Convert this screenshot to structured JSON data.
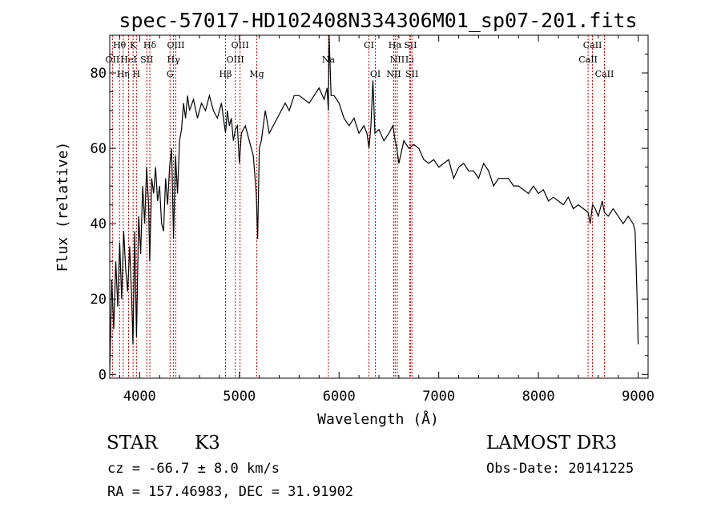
{
  "chart_data": {
    "type": "line",
    "title": "spec-57017-HD102408N334306M01_sp07-201.fits",
    "xlabel": "Wavelength (Å)",
    "ylabel": "Flux (relative)",
    "xlim": [
      3700,
      9100
    ],
    "ylim": [
      -1,
      90
    ],
    "xticks": [
      4000,
      5000,
      6000,
      7000,
      8000,
      9000
    ],
    "yticks": [
      0,
      20,
      40,
      60,
      80
    ],
    "grid": false,
    "series": [
      {
        "color": "#000000",
        "x": [
          3700,
          3720,
          3740,
          3760,
          3780,
          3800,
          3820,
          3840,
          3860,
          3880,
          3900,
          3920,
          3933,
          3950,
          3968,
          3990,
          4010,
          4030,
          4050,
          4070,
          4090,
          4101,
          4120,
          4140,
          4160,
          4180,
          4200,
          4220,
          4240,
          4260,
          4280,
          4300,
          4320,
          4340,
          4360,
          4380,
          4400,
          4420,
          4440,
          4460,
          4480,
          4500,
          4540,
          4580,
          4620,
          4660,
          4700,
          4740,
          4780,
          4820,
          4861,
          4880,
          4900,
          4920,
          4940,
          4960,
          4980,
          5000,
          5020,
          5060,
          5100,
          5140,
          5170,
          5183,
          5200,
          5220,
          5260,
          5300,
          5340,
          5380,
          5420,
          5460,
          5500,
          5550,
          5600,
          5650,
          5700,
          5750,
          5800,
          5850,
          5880,
          5893,
          5900,
          5920,
          5950,
          6000,
          6050,
          6100,
          6150,
          6200,
          6250,
          6280,
          6300,
          6320,
          6340,
          6360,
          6400,
          6450,
          6500,
          6540,
          6563,
          6580,
          6600,
          6650,
          6700,
          6750,
          6800,
          6850,
          6900,
          6950,
          7000,
          7050,
          7100,
          7150,
          7200,
          7250,
          7300,
          7350,
          7400,
          7450,
          7500,
          7550,
          7600,
          7650,
          7700,
          7750,
          7800,
          7850,
          7900,
          7950,
          8000,
          8050,
          8100,
          8150,
          8200,
          8250,
          8300,
          8350,
          8400,
          8450,
          8498,
          8520,
          8542,
          8570,
          8600,
          8640,
          8662,
          8700,
          8750,
          8800,
          8850,
          8900,
          8950,
          8970,
          8990,
          9000
        ],
        "y": [
          1,
          25,
          12,
          30,
          18,
          35,
          20,
          38,
          28,
          22,
          34,
          20,
          8,
          38,
          10,
          42,
          32,
          50,
          40,
          55,
          45,
          30,
          52,
          48,
          55,
          46,
          50,
          40,
          38,
          52,
          45,
          55,
          60,
          36,
          58,
          48,
          62,
          65,
          72,
          68,
          74,
          70,
          73,
          68,
          72,
          70,
          74,
          70,
          68,
          72,
          64,
          70,
          66,
          68,
          62,
          65,
          66,
          56,
          64,
          66,
          62,
          58,
          48,
          36,
          60,
          62,
          70,
          64,
          66,
          68,
          70,
          72,
          70,
          74,
          74,
          73,
          72,
          74,
          76,
          73,
          76,
          70,
          90,
          74,
          74,
          72,
          68,
          66,
          68,
          64,
          66,
          64,
          60,
          66,
          78,
          64,
          65,
          62,
          64,
          66,
          62,
          60,
          56,
          62,
          60,
          61,
          60,
          57,
          56,
          57,
          55,
          56,
          57,
          52,
          55,
          56,
          54,
          54,
          52,
          56,
          54,
          50,
          52,
          52,
          52,
          50,
          50,
          49,
          48,
          50,
          48,
          49,
          46,
          47,
          46,
          45,
          47,
          44,
          45,
          44,
          43,
          40,
          45,
          44,
          42,
          46,
          43,
          42,
          44,
          42,
          40,
          42,
          40,
          38,
          20,
          8
        ]
      }
    ],
    "line_markers": [
      {
        "label": "Hθ",
        "x": 3798,
        "row": 0
      },
      {
        "label": "K",
        "x": 3934,
        "row": 0
      },
      {
        "label": "Hδ",
        "x": 4102,
        "row": 0
      },
      {
        "label": "OIII",
        "x": 4363,
        "row": 0
      },
      {
        "label": "OIII",
        "x": 5007,
        "row": 0
      },
      {
        "label": "CI",
        "x": 6300,
        "row": 0
      },
      {
        "label": "Hα",
        "x": 6563,
        "row": 0
      },
      {
        "label": "SII",
        "x": 6716,
        "row": 0
      },
      {
        "label": "CaII",
        "x": 8542,
        "row": 0
      },
      {
        "label": "OII",
        "x": 3727,
        "row": 1
      },
      {
        "label": "HeI",
        "x": 3889,
        "row": 1
      },
      {
        "label": "SII",
        "x": 4072,
        "row": 1
      },
      {
        "label": "Hγ",
        "x": 4340,
        "row": 1
      },
      {
        "label": "OIII",
        "x": 4959,
        "row": 1
      },
      {
        "label": "Na",
        "x": 5893,
        "row": 1
      },
      {
        "label": "NII",
        "x": 6584,
        "row": 1
      },
      {
        "label": "Li",
        "x": 6708,
        "row": 1
      },
      {
        "label": "CaII",
        "x": 8498,
        "row": 1
      },
      {
        "label": "Hη",
        "x": 3835,
        "row": 2
      },
      {
        "label": "H",
        "x": 3968,
        "row": 2
      },
      {
        "label": "G",
        "x": 4305,
        "row": 2
      },
      {
        "label": "Hβ",
        "x": 4861,
        "row": 2
      },
      {
        "label": "Mg",
        "x": 5175,
        "row": 2
      },
      {
        "label": "OI",
        "x": 6364,
        "row": 2
      },
      {
        "label": "NII",
        "x": 6548,
        "row": 2
      },
      {
        "label": "SII",
        "x": 6731,
        "row": 2
      },
      {
        "label": "CaII",
        "x": 8662,
        "row": 2
      }
    ],
    "marker_color": "#cc0000"
  },
  "info": {
    "class": "STAR",
    "subclass": "K3",
    "survey": "LAMOST DR3",
    "cz": "cz = -66.7 ± 8.0 km/s",
    "obs_date": "Obs-Date: 20141225",
    "coords": "RA = 157.46983, DEC =  31.91902"
  }
}
